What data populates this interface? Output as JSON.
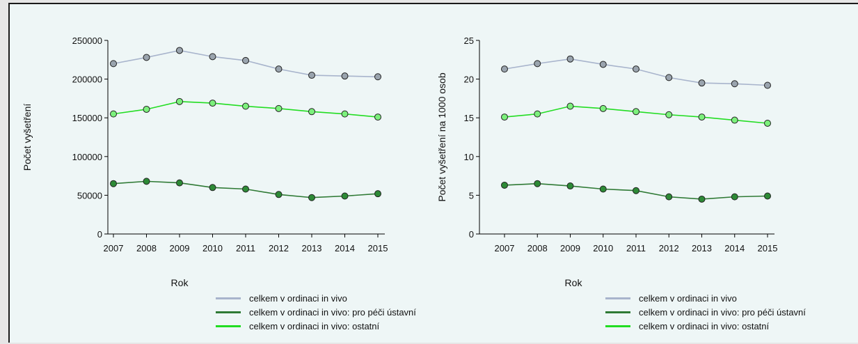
{
  "chart_data": [
    {
      "type": "line",
      "title": "",
      "xlabel": "Rok",
      "ylabel": "Počet vyšetření",
      "ylim": [
        0,
        250000
      ],
      "yticks": [
        "0",
        "50000",
        "100000",
        "150000",
        "200000",
        "250000"
      ],
      "x": [
        "2007",
        "2008",
        "2009",
        "2010",
        "2011",
        "2012",
        "2013",
        "2014",
        "2015"
      ],
      "grid": false,
      "legend_position": "bottom",
      "series": [
        {
          "name": "celkem v ordinaci in vivo",
          "color": "#a8b4cc",
          "marker": "#9aa4ae",
          "values": [
            220000,
            228000,
            237000,
            229000,
            224000,
            213000,
            205000,
            204000,
            203000
          ]
        },
        {
          "name": "celkem v ordinaci in vivo: pro péči ústavní",
          "color": "#2f7a35",
          "marker": "#2d8a36",
          "values": [
            65000,
            68000,
            66000,
            60000,
            58000,
            51000,
            47000,
            49000,
            52000
          ]
        },
        {
          "name": "celkem v ordinaci in vivo: ostatní",
          "color": "#22dd22",
          "marker": "#7cf07c",
          "values": [
            155000,
            161000,
            171000,
            169000,
            165000,
            162000,
            158000,
            155000,
            151000
          ]
        }
      ]
    },
    {
      "type": "line",
      "title": "",
      "xlabel": "Rok",
      "ylabel": "Počet vyšetření na 1000 osob",
      "ylim": [
        0,
        25
      ],
      "yticks": [
        "0",
        "5",
        "10",
        "15",
        "20",
        "25"
      ],
      "x": [
        "2007",
        "2008",
        "2009",
        "2010",
        "2011",
        "2012",
        "2013",
        "2014",
        "2015"
      ],
      "grid": false,
      "legend_position": "bottom",
      "series": [
        {
          "name": "celkem v ordinaci in vivo",
          "color": "#a8b4cc",
          "marker": "#9aa4ae",
          "values": [
            21.3,
            22.0,
            22.6,
            21.9,
            21.3,
            20.2,
            19.5,
            19.4,
            19.2
          ]
        },
        {
          "name": "celkem v ordinaci in vivo: pro péči ústavní",
          "color": "#2f7a35",
          "marker": "#2d8a36",
          "values": [
            6.3,
            6.5,
            6.2,
            5.8,
            5.6,
            4.8,
            4.5,
            4.8,
            4.9
          ]
        },
        {
          "name": "celkem v ordinaci in vivo: ostatní",
          "color": "#22dd22",
          "marker": "#7cf07c",
          "values": [
            15.1,
            15.5,
            16.5,
            16.2,
            15.8,
            15.4,
            15.1,
            14.7,
            14.3
          ]
        }
      ]
    }
  ]
}
